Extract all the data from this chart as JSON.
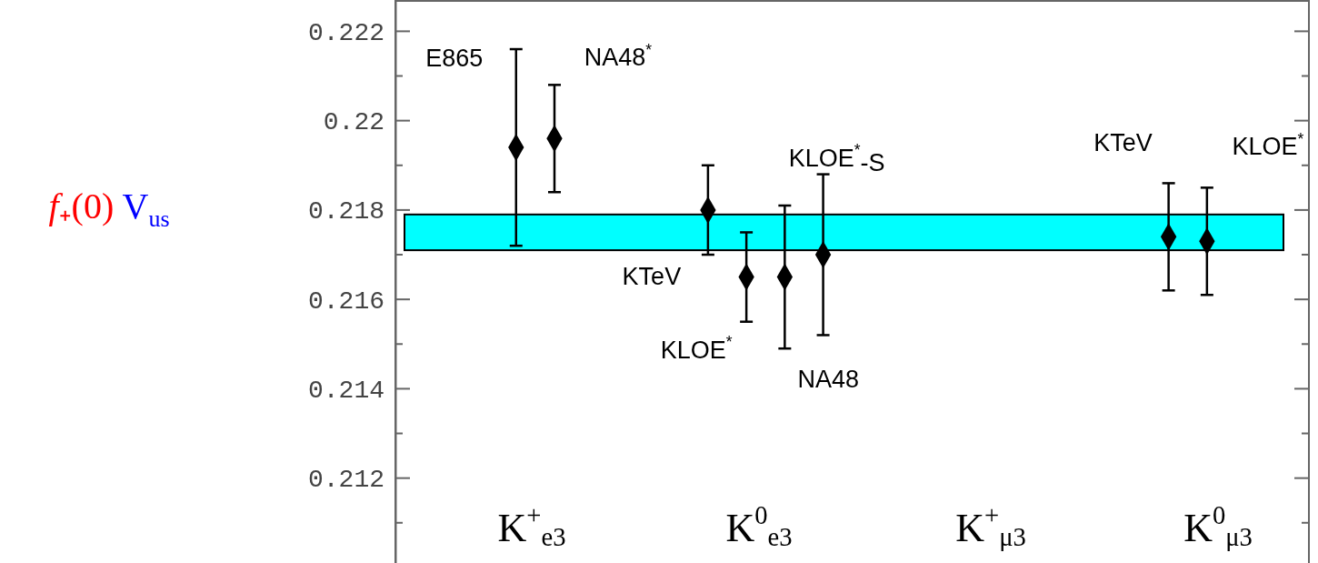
{
  "chart_data": {
    "type": "scatter",
    "ylabel": "f₊(0) V$_{us}$",
    "categories": [
      null,
      null,
      null,
      null,
      null,
      null,
      null,
      null,
      null,
      null,
      null,
      null,
      null,
      null,
      null,
      null,
      null,
      null,
      null,
      null,
      null,
      null,
      null,
      null
    ],
    "values": [
      null,
      null,
      null,
      0.2194,
      0.2196,
      null,
      null,
      null,
      0.218,
      0.2165,
      0.2165,
      0.217,
      null,
      null,
      null,
      null,
      null,
      null,
      null,
      null,
      0.2174,
      0.2173,
      null,
      null
    ],
    "errors": [
      null,
      null,
      null,
      0.0022,
      0.0012,
      null,
      null,
      null,
      0.001,
      0.001,
      0.0016,
      0.0018,
      null,
      null,
      null,
      null,
      null,
      null,
      null,
      null,
      0.0012,
      0.0012,
      null,
      null
    ],
    "value_labels": [
      null,
      null,
      null,
      "E865",
      "NA48$^{*}$",
      null,
      null,
      null,
      "KTeV",
      "KLOE$^{*}$",
      "NA48",
      "KLOE$^{*}$-S",
      null,
      null,
      null,
      null,
      null,
      null,
      null,
      null,
      "KTeV",
      "KLOE$^{*}$",
      null,
      null
    ],
    "color": "#000000",
    "marker": "diamond",
    "ylim": [
      0.2101,
      0.2227
    ],
    "yticks": [
      {
        "value": 0.211,
        "label": null
      },
      0.212,
      {
        "value": 0.213,
        "label": null
      },
      0.214,
      {
        "value": 0.215,
        "label": null
      },
      0.216,
      {
        "value": 0.217,
        "label": null
      },
      0.218,
      {
        "value": 0.219,
        "label": null
      },
      0.22,
      {
        "value": 0.221,
        "label": null
      },
      0.222
    ],
    "tick_labels": "y",
    "bands": [
      {
        "axis": "y",
        "from": 0.2171,
        "to": 0.2179,
        "color": "#00ffff"
      }
    ],
    "annotations": [
      "K$^{+}$$_{e3}$",
      "K$^{0}$$_{e3}$",
      "K$^{+}$$_{μ3}$",
      "K$^{0}$$_{μ3}$"
    ]
  }
}
